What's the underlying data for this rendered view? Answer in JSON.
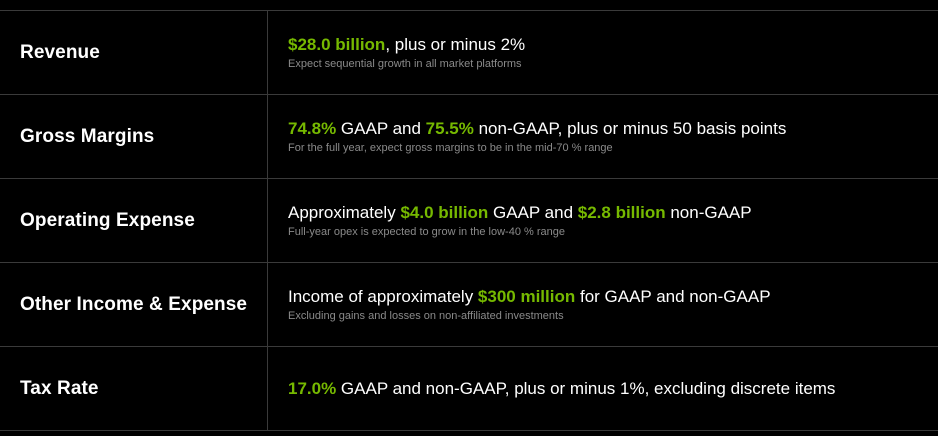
{
  "colors": {
    "background": "#000000",
    "text": "#ffffff",
    "highlight": "#76b900",
    "note": "#8a8a8a",
    "divider": "#3a3a3a"
  },
  "rows": [
    {
      "label": "Revenue",
      "segments": [
        {
          "text": "$28.0 billion",
          "hl": true
        },
        {
          "text": ", plus or minus 2%",
          "hl": false
        }
      ],
      "note": "Expect sequential growth in all market platforms"
    },
    {
      "label": "Gross Margins",
      "segments": [
        {
          "text": "74.8%",
          "hl": true
        },
        {
          "text": " GAAP and ",
          "hl": false
        },
        {
          "text": "75.5%",
          "hl": true
        },
        {
          "text": " non-GAAP, plus or minus 50 basis points",
          "hl": false
        }
      ],
      "note": "For the full year, expect gross margins to be in the mid-70 % range"
    },
    {
      "label": "Operating Expense",
      "segments": [
        {
          "text": "Approximately ",
          "hl": false
        },
        {
          "text": "$4.0 billion",
          "hl": true
        },
        {
          "text": " GAAP and ",
          "hl": false
        },
        {
          "text": "$2.8 billion",
          "hl": true
        },
        {
          "text": " non-GAAP",
          "hl": false
        }
      ],
      "note": "Full-year opex is expected to grow in the low-40 % range"
    },
    {
      "label": "Other Income & Expense",
      "segments": [
        {
          "text": "Income of approximately ",
          "hl": false
        },
        {
          "text": "$300 million",
          "hl": true
        },
        {
          "text": " for GAAP and non-GAAP",
          "hl": false
        }
      ],
      "note": "Excluding gains and losses on non-affiliated investments"
    },
    {
      "label": "Tax Rate",
      "segments": [
        {
          "text": "17.0%",
          "hl": true
        },
        {
          "text": " GAAP and non-GAAP, plus or minus 1%, excluding discrete items",
          "hl": false
        }
      ],
      "note": ""
    }
  ]
}
